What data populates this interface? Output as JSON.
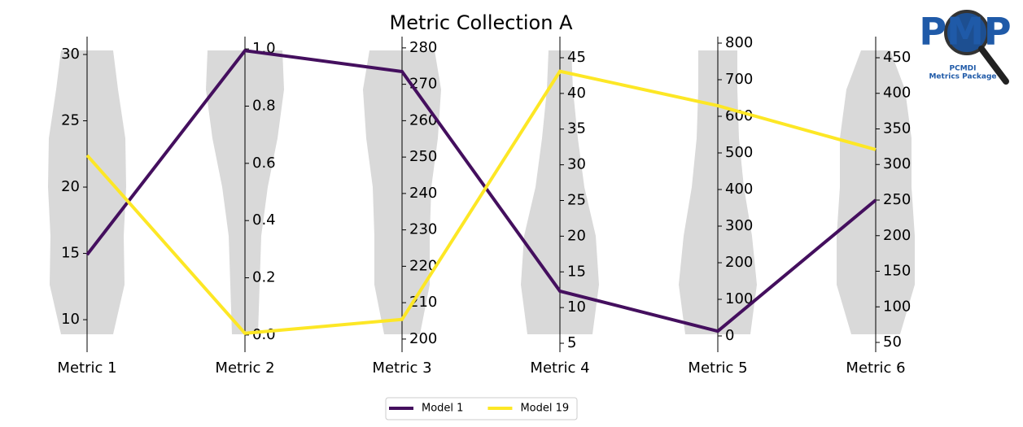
{
  "chart_data": {
    "type": "parallel",
    "title": "Metric Collection A",
    "categories": [
      "Metric 1",
      "Metric 2",
      "Metric 3",
      "Metric 4",
      "Metric 5",
      "Metric 6"
    ],
    "axes": [
      {
        "ylim": [
          7.55,
          31.35
        ],
        "yticks": [
          10,
          15,
          20,
          25,
          30
        ]
      },
      {
        "ylim": [
          -0.06,
          1.043
        ],
        "yticks": [
          {
            "value": 0,
            "label": "0.0"
          },
          {
            "value": 0.2,
            "label": "0.2"
          },
          {
            "value": 0.4,
            "label": "0.4"
          },
          {
            "value": 0.6,
            "label": "0.6"
          },
          {
            "value": 0.8,
            "label": "0.8"
          },
          {
            "value": 1,
            "label": "1.0"
          }
        ]
      },
      {
        "ylim": [
          196.4,
          283.1
        ],
        "yticks": [
          200,
          210,
          220,
          230,
          240,
          250,
          260,
          270,
          280
        ]
      },
      {
        "ylim": [
          3.75,
          47.96
        ],
        "yticks": [
          5,
          10,
          15,
          20,
          25,
          30,
          35,
          40,
          45
        ]
      },
      {
        "ylim": [
          -44.4,
          817.8
        ],
        "yticks": [
          0,
          100,
          200,
          300,
          400,
          500,
          600,
          700,
          800
        ]
      },
      {
        "ylim": [
          36.3,
          479.7
        ],
        "yticks": [
          50,
          100,
          150,
          200,
          250,
          300,
          350,
          400,
          450
        ]
      }
    ],
    "series": [
      {
        "name": "Model 1",
        "color": "#440f5e",
        "values": [
          14.9,
          0.994,
          273.5,
          12.3,
          13,
          250
        ]
      },
      {
        "name": "Model 19",
        "color": "#fde725",
        "values": [
          22.4,
          0.006,
          205.4,
          43.1,
          629,
          320.9
        ]
      }
    ],
    "logo": {
      "title": "PMP",
      "subtitle": [
        "PCMDI",
        "Metrics Package"
      ]
    }
  }
}
